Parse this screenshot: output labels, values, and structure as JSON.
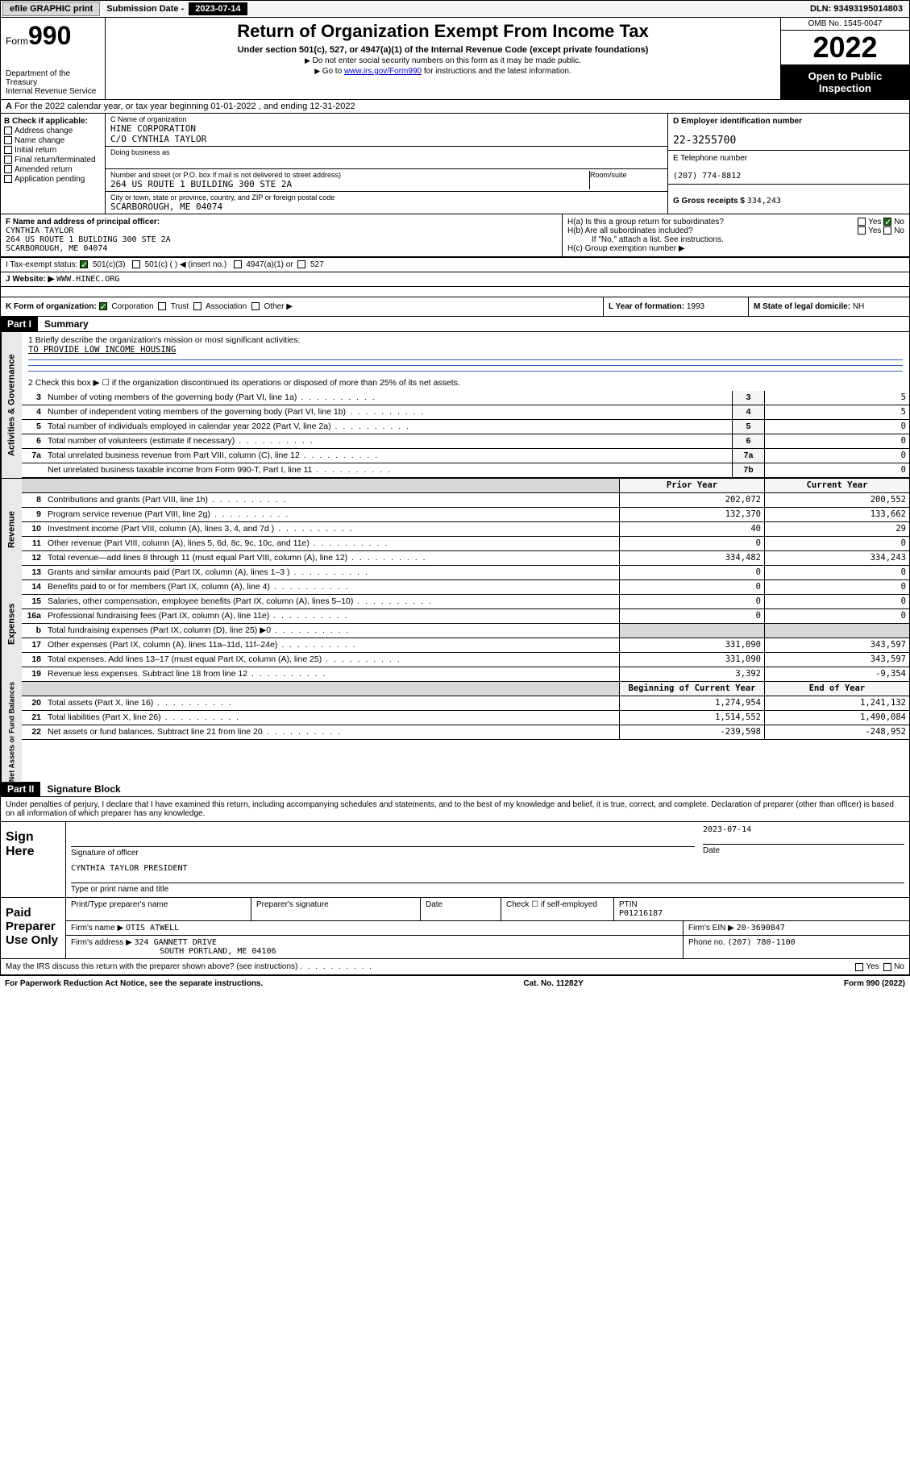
{
  "topbar": {
    "efile": "efile GRAPHIC print",
    "sub_lbl": "Submission Date - ",
    "sub_date": "2023-07-14",
    "dln_lbl": "DLN: ",
    "dln": "93493195014803"
  },
  "header": {
    "form_word": "Form",
    "form_num": "990",
    "title": "Return of Organization Exempt From Income Tax",
    "sub1": "Under section 501(c), 527, or 4947(a)(1) of the Internal Revenue Code (except private foundations)",
    "sub2": "Do not enter social security numbers on this form as it may be made public.",
    "sub3_pre": "Go to ",
    "sub3_link": "www.irs.gov/Form990",
    "sub3_post": " for instructions and the latest information.",
    "dept": "Department of the Treasury\nInternal Revenue Service",
    "omb": "OMB No. 1545-0047",
    "year": "2022",
    "open": "Open to Public Inspection"
  },
  "lineA": "For the 2022 calendar year, or tax year beginning 01-01-2022     , and ending 12-31-2022",
  "colB": {
    "title": "B Check if applicable:",
    "items": [
      "Address change",
      "Name change",
      "Initial return",
      "Final return/terminated",
      "Amended return",
      "Application pending"
    ]
  },
  "colC": {
    "name_lbl": "C Name of organization",
    "name1": "HINE CORPORATION",
    "name2": "C/O CYNTHIA TAYLOR",
    "dba_lbl": "Doing business as",
    "addr_lbl": "Number and street (or P.O. box if mail is not delivered to street address)",
    "room_lbl": "Room/suite",
    "addr": "264 US ROUTE 1 BUILDING 300 STE 2A",
    "city_lbl": "City or town, state or province, country, and ZIP or foreign postal code",
    "city": "SCARBOROUGH, ME  04074"
  },
  "colD": {
    "d_lbl": "D Employer identification number",
    "ein": "22-3255700",
    "e_lbl": "E Telephone number",
    "phone": "(207) 774-8812",
    "g_lbl": "G Gross receipts $ ",
    "gross": "334,243"
  },
  "rowF": {
    "f_lbl": "F  Name and address of principal officer:",
    "officer": "CYNTHIA TAYLOR\n264 US ROUTE 1 BUILDING 300 STE 2A\nSCARBOROUGH, ME  04074",
    "ha": "H(a)  Is this a group return for subordinates?",
    "hb": "H(b)  Are all subordinates included?",
    "hb_note": "If \"No,\" attach a list. See instructions.",
    "hc": "H(c)  Group exemption number ▶",
    "yes": "Yes",
    "no": "No"
  },
  "rowI": {
    "lbl": "I     Tax-exempt status:",
    "opt1": "501(c)(3)",
    "opt2": "501(c) (  ) ◀ (insert no.)",
    "opt3": "4947(a)(1) or",
    "opt4": "527"
  },
  "rowJ": {
    "lbl": "J     Website: ▶",
    "site": "WWW.HINEC.ORG"
  },
  "rowK": {
    "lbl": "K Form of organization:",
    "opts": [
      "Corporation",
      "Trust",
      "Association",
      "Other ▶"
    ],
    "l_lbl": "L Year of formation: ",
    "l_val": "1993",
    "m_lbl": "M State of legal domicile: ",
    "m_val": "NH"
  },
  "part1": {
    "hdr": "Part I",
    "title": "Summary"
  },
  "mission": {
    "q1": "1   Briefly describe the organization's mission or most significant activities:",
    "text": "TO PROVIDE LOW INCOME HOUSING",
    "q2": "2   Check this box ▶ ☐  if the organization discontinued its operations or disposed of more than 25% of its net assets."
  },
  "governance": {
    "sidebar": "Activities & Governance",
    "rows": [
      {
        "n": "3",
        "d": "Number of voting members of the governing body (Part VI, line 1a)",
        "b": "3",
        "v": "5"
      },
      {
        "n": "4",
        "d": "Number of independent voting members of the governing body (Part VI, line 1b)",
        "b": "4",
        "v": "5"
      },
      {
        "n": "5",
        "d": "Total number of individuals employed in calendar year 2022 (Part V, line 2a)",
        "b": "5",
        "v": "0"
      },
      {
        "n": "6",
        "d": "Total number of volunteers (estimate if necessary)",
        "b": "6",
        "v": "0"
      },
      {
        "n": "7a",
        "d": "Total unrelated business revenue from Part VIII, column (C), line 12",
        "b": "7a",
        "v": "0"
      },
      {
        "n": "",
        "d": "Net unrelated business taxable income from Form 990-T, Part I, line 11",
        "b": "7b",
        "v": "0"
      }
    ]
  },
  "twocol_hdr": {
    "prior": "Prior Year",
    "current": "Current Year"
  },
  "revenue": {
    "sidebar": "Revenue",
    "rows": [
      {
        "n": "8",
        "d": "Contributions and grants (Part VIII, line 1h)",
        "p": "202,072",
        "c": "200,552"
      },
      {
        "n": "9",
        "d": "Program service revenue (Part VIII, line 2g)",
        "p": "132,370",
        "c": "133,662"
      },
      {
        "n": "10",
        "d": "Investment income (Part VIII, column (A), lines 3, 4, and 7d )",
        "p": "40",
        "c": "29"
      },
      {
        "n": "11",
        "d": "Other revenue (Part VIII, column (A), lines 5, 6d, 8c, 9c, 10c, and 11e)",
        "p": "0",
        "c": "0"
      },
      {
        "n": "12",
        "d": "Total revenue—add lines 8 through 11 (must equal Part VIII, column (A), line 12)",
        "p": "334,482",
        "c": "334,243"
      }
    ]
  },
  "expenses": {
    "sidebar": "Expenses",
    "rows": [
      {
        "n": "13",
        "d": "Grants and similar amounts paid (Part IX, column (A), lines 1–3 )",
        "p": "0",
        "c": "0"
      },
      {
        "n": "14",
        "d": "Benefits paid to or for members (Part IX, column (A), line 4)",
        "p": "0",
        "c": "0"
      },
      {
        "n": "15",
        "d": "Salaries, other compensation, employee benefits (Part IX, column (A), lines 5–10)",
        "p": "0",
        "c": "0"
      },
      {
        "n": "16a",
        "d": "Professional fundraising fees (Part IX, column (A), line 11e)",
        "p": "0",
        "c": "0"
      },
      {
        "n": "b",
        "d": "Total fundraising expenses (Part IX, column (D), line 25) ▶0",
        "p": "",
        "c": "",
        "shade": true
      },
      {
        "n": "17",
        "d": "Other expenses (Part IX, column (A), lines 11a–11d, 11f–24e)",
        "p": "331,090",
        "c": "343,597"
      },
      {
        "n": "18",
        "d": "Total expenses. Add lines 13–17 (must equal Part IX, column (A), line 25)",
        "p": "331,090",
        "c": "343,597"
      },
      {
        "n": "19",
        "d": "Revenue less expenses. Subtract line 18 from line 12",
        "p": "3,392",
        "c": "-9,354"
      }
    ]
  },
  "netassets_hdr": {
    "beg": "Beginning of Current Year",
    "end": "End of Year"
  },
  "netassets": {
    "sidebar": "Net Assets or Fund Balances",
    "rows": [
      {
        "n": "20",
        "d": "Total assets (Part X, line 16)",
        "p": "1,274,954",
        "c": "1,241,132"
      },
      {
        "n": "21",
        "d": "Total liabilities (Part X, line 26)",
        "p": "1,514,552",
        "c": "1,490,084"
      },
      {
        "n": "22",
        "d": "Net assets or fund balances. Subtract line 21 from line 20",
        "p": "-239,598",
        "c": "-248,952"
      }
    ]
  },
  "part2": {
    "hdr": "Part II",
    "title": "Signature Block"
  },
  "sigtext": "Under penalties of perjury, I declare that I have examined this return, including accompanying schedules and statements, and to the best of my knowledge and belief, it is true, correct, and complete. Declaration of preparer (other than officer) is based on all information of which preparer has any knowledge.",
  "sign": {
    "lbl": "Sign Here",
    "sig_of_officer": "Signature of officer",
    "date_lbl": "Date",
    "date": "2023-07-14",
    "name": "CYNTHIA TAYLOR  PRESIDENT",
    "name_lbl": "Type or print name and title"
  },
  "paid": {
    "lbl": "Paid Preparer Use Only",
    "h1": "Print/Type preparer's name",
    "h2": "Preparer's signature",
    "h3": "Date",
    "h4_pre": "Check ☐ if self-employed",
    "h5": "PTIN",
    "ptin": "P01216187",
    "firm_name_lbl": "Firm's name    ▶ ",
    "firm_name": "OTIS ATWELL",
    "firm_ein_lbl": "Firm's EIN ▶ ",
    "firm_ein": "20-3690847",
    "firm_addr_lbl": "Firm's address ▶ ",
    "firm_addr1": "324 GANNETT DRIVE",
    "firm_addr2": "SOUTH PORTLAND, ME  04106",
    "phone_lbl": "Phone no. ",
    "phone": "(207) 780-1100"
  },
  "may_irs": "May the IRS discuss this return with the preparer shown above? (see instructions)",
  "footer": {
    "left": "For Paperwork Reduction Act Notice, see the separate instructions.",
    "mid": "Cat. No. 11282Y",
    "right": "Form 990 (2022)"
  }
}
